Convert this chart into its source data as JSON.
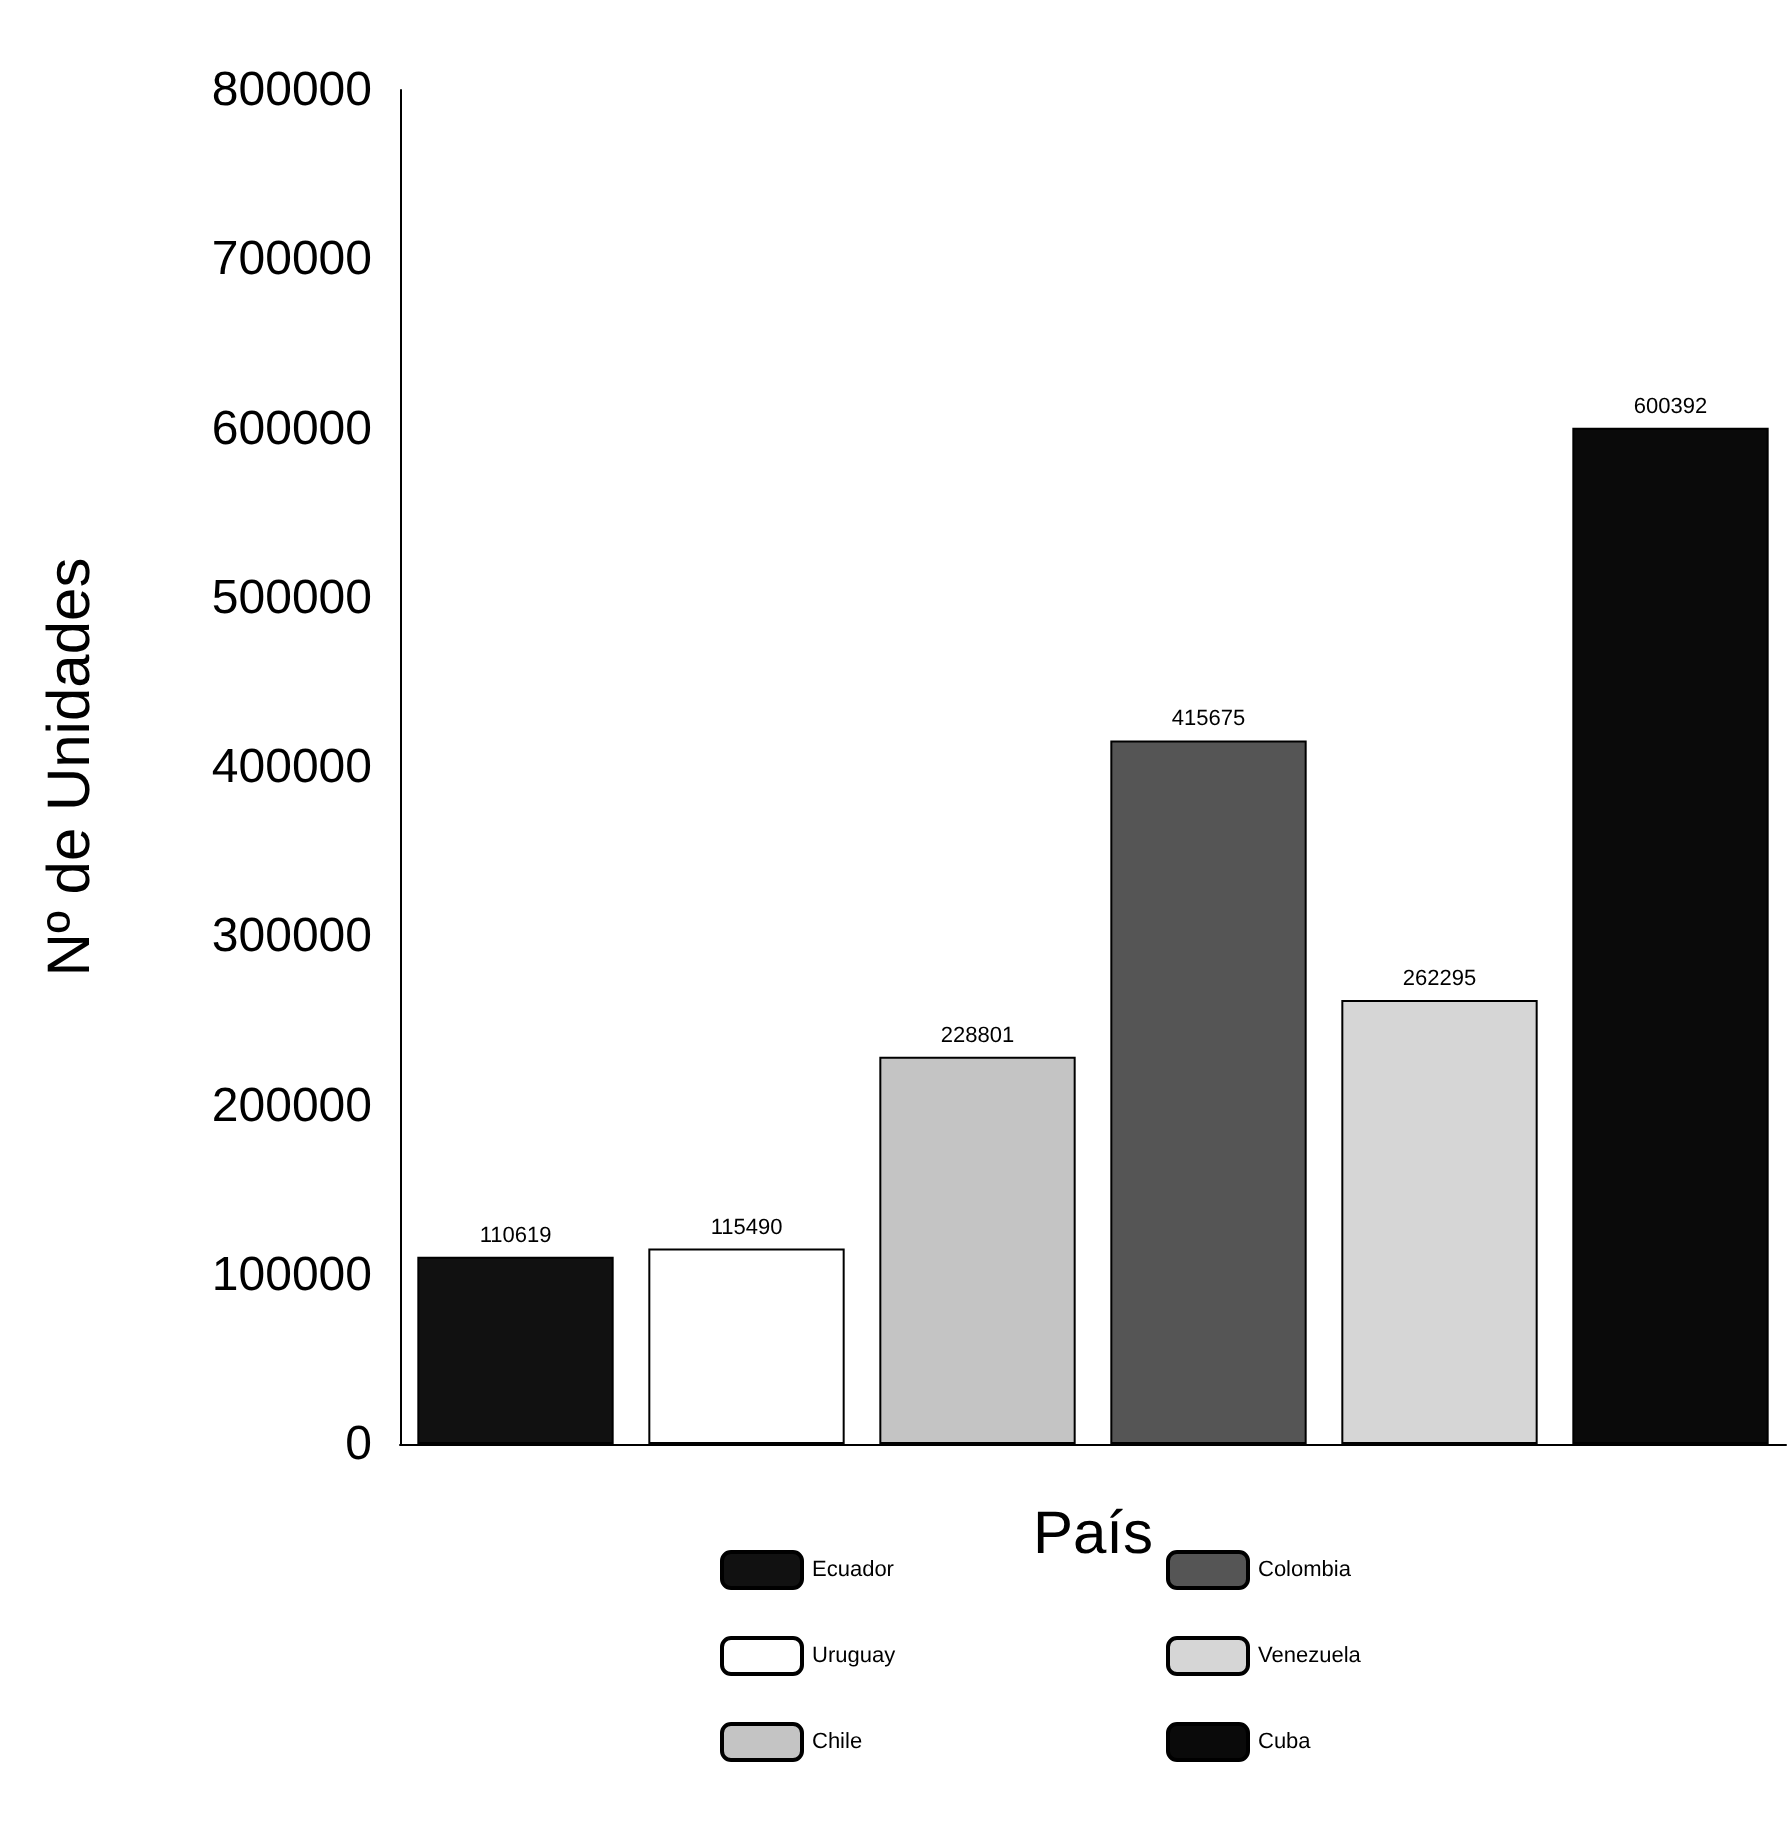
{
  "chart_data": {
    "type": "bar",
    "xlabel": "País",
    "ylabel": "Nº de Unidades",
    "categories": [
      null,
      null,
      null,
      null,
      null,
      null
    ],
    "series": [
      {
        "name": "Ecuador",
        "color": "#111111",
        "values": [
          110619,
          null,
          null,
          null,
          null,
          null
        ]
      },
      {
        "name": "Uruguay",
        "color": "#ffffff",
        "values": [
          null,
          115490,
          null,
          null,
          null,
          null
        ]
      },
      {
        "name": "Chile",
        "color": "#c4c4c4",
        "values": [
          null,
          null,
          228801,
          null,
          null,
          null
        ]
      },
      {
        "name": "Colombia",
        "color": "#555555",
        "values": [
          null,
          null,
          null,
          415675,
          null,
          null
        ]
      },
      {
        "name": "Venezuela",
        "color": "#d6d6d6",
        "values": [
          null,
          null,
          null,
          null,
          262295,
          null
        ]
      },
      {
        "name": "Cuba",
        "color": "#0a0a0a",
        "values": [
          null,
          null,
          null,
          null,
          null,
          600392
        ]
      }
    ],
    "ylim": [
      0,
      800000
    ],
    "yticks": [
      0,
      100000,
      200000,
      300000,
      400000,
      500000,
      600000,
      700000,
      800000
    ],
    "data_labels": true,
    "grid": false,
    "legend": "bottom"
  }
}
